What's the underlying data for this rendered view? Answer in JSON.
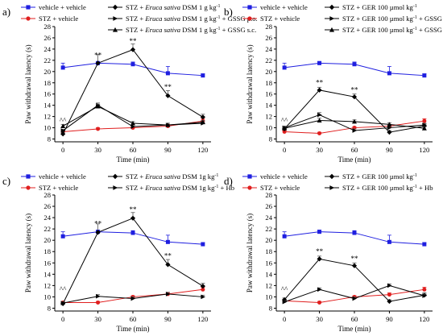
{
  "chart_data": [
    {
      "type": "line",
      "panel_label": "a)",
      "xlabel": "Time (min)",
      "ylabel": "Paw withdrawal latency (s)",
      "x": [
        0,
        30,
        60,
        90,
        120
      ],
      "xlim": [
        -7,
        127
      ],
      "ylim": [
        7.5,
        28
      ],
      "yticks": [
        8,
        10,
        12,
        14,
        16,
        18,
        20,
        22,
        24,
        26,
        28
      ],
      "legend": "top",
      "annotations": [
        {
          "text": "^^",
          "x": 0,
          "y": 10.9
        },
        {
          "text": "**",
          "x": 30,
          "y": 22.5
        },
        {
          "text": "**",
          "x": 60,
          "y": 25.0
        },
        {
          "text": "**",
          "x": 90,
          "y": 16.8
        }
      ],
      "series": [
        {
          "name": "vehicle + vehicle",
          "color": "#1f1fe0",
          "marker": "square",
          "values": [
            20.7,
            21.5,
            21.3,
            19.7,
            19.3
          ],
          "err": [
            0.8,
            0.3,
            0.4,
            1.2,
            0.3
          ]
        },
        {
          "name": "STZ + vehicle",
          "color": "#e01f1f",
          "marker": "circle",
          "values": [
            9.3,
            9.8,
            10.0,
            10.3,
            11.2
          ],
          "err": [
            0.2,
            0.2,
            0.2,
            0.3,
            0.4
          ]
        },
        {
          "name_parts": [
            "STZ + ",
            "Eruca sativa",
            " DSM 1 g kg",
            "-1"
          ],
          "color": "#000000",
          "marker": "diamond",
          "values": [
            8.9,
            21.5,
            23.9,
            15.7,
            11.9
          ],
          "err": [
            0.3,
            1.5,
            1.0,
            0.9,
            0.5
          ]
        },
        {
          "name_parts": [
            "STZ + ",
            "Eruca sativa",
            " DSM 1 g kg",
            "-1",
            " + GSSG p.o."
          ],
          "color": "#000000",
          "marker": "triangle-right",
          "values": [
            9.5,
            14.0,
            10.2,
            10.5,
            10.8
          ],
          "err": [
            0.2,
            0.4,
            0.3,
            0.3,
            0.3
          ]
        },
        {
          "name_parts": [
            "STZ + ",
            "Eruca sativa",
            " DSM 1 g kg",
            "-1",
            " + GSSG s.c."
          ],
          "color": "#000000",
          "marker": "triangle-up",
          "values": [
            10.3,
            13.8,
            10.8,
            10.5,
            11.0
          ],
          "err": [
            0.3,
            0.4,
            0.3,
            0.3,
            0.3
          ]
        }
      ]
    },
    {
      "type": "line",
      "panel_label": "b)",
      "xlabel": "Time (min)",
      "ylabel": "Paw withdrawal latency (s)",
      "x": [
        0,
        30,
        60,
        90,
        120
      ],
      "xlim": [
        -7,
        127
      ],
      "ylim": [
        7.5,
        28
      ],
      "yticks": [
        8,
        10,
        12,
        14,
        16,
        18,
        20,
        22,
        24,
        26,
        28
      ],
      "legend": "top",
      "annotations": [
        {
          "text": "^^",
          "x": 0,
          "y": 10.9
        },
        {
          "text": "**",
          "x": 30,
          "y": 17.6
        },
        {
          "text": "**",
          "x": 60,
          "y": 16.3
        }
      ],
      "series": [
        {
          "name": "vehicle + vehicle",
          "color": "#1f1fe0",
          "marker": "square",
          "values": [
            20.7,
            21.5,
            21.3,
            19.7,
            19.3
          ],
          "err": [
            0.8,
            0.3,
            0.4,
            1.2,
            0.3
          ]
        },
        {
          "name": "STZ + vehicle",
          "color": "#e01f1f",
          "marker": "circle",
          "values": [
            9.3,
            9.0,
            10.0,
            10.3,
            11.2
          ],
          "err": [
            0.2,
            0.2,
            0.2,
            0.3,
            0.4
          ]
        },
        {
          "name_parts": [
            "STZ + GER 100 µmol kg",
            "-1"
          ],
          "color": "#000000",
          "marker": "diamond",
          "values": [
            9.8,
            16.7,
            15.5,
            9.2,
            10.3
          ],
          "err": [
            0.3,
            0.5,
            0.5,
            0.3,
            0.4
          ]
        },
        {
          "name_parts": [
            "STZ + GER 100 µmol kg",
            "-1",
            " + GSSG  p.o."
          ],
          "color": "#000000",
          "marker": "triangle-right",
          "values": [
            10.0,
            12.3,
            9.5,
            10.0,
            10.5
          ],
          "err": [
            0.3,
            0.4,
            0.3,
            0.3,
            0.3
          ]
        },
        {
          "name_parts": [
            "STZ + GER 100 µmol kg",
            "-1",
            " + GSSG  s.c."
          ],
          "color": "#000000",
          "marker": "triangle-up",
          "values": [
            9.9,
            11.3,
            11.1,
            10.6,
            9.9
          ],
          "err": [
            0.3,
            0.4,
            0.3,
            0.3,
            0.3
          ]
        }
      ]
    },
    {
      "type": "line",
      "panel_label": "c)",
      "xlabel": "Time (min)",
      "ylabel": "Paw withdrawal latency (s)",
      "x": [
        0,
        30,
        60,
        90,
        120
      ],
      "xlim": [
        -7,
        127
      ],
      "ylim": [
        7.5,
        28
      ],
      "yticks": [
        8,
        10,
        12,
        14,
        16,
        18,
        20,
        22,
        24,
        26,
        28
      ],
      "legend": "top",
      "annotations": [
        {
          "text": "^^",
          "x": 0,
          "y": 10.9
        },
        {
          "text": "**",
          "x": 30,
          "y": 22.5
        },
        {
          "text": "**",
          "x": 60,
          "y": 25.0
        },
        {
          "text": "**",
          "x": 90,
          "y": 16.8
        }
      ],
      "series": [
        {
          "name": "vehicle + vehicle",
          "color": "#1f1fe0",
          "marker": "square",
          "values": [
            20.7,
            21.5,
            21.3,
            19.7,
            19.3
          ],
          "err": [
            0.8,
            0.3,
            0.4,
            1.2,
            0.3
          ]
        },
        {
          "name": "STZ + vehicle",
          "color": "#e01f1f",
          "marker": "circle",
          "values": [
            9.0,
            9.0,
            10.0,
            10.5,
            11.3
          ],
          "err": [
            0.2,
            0.2,
            0.2,
            0.3,
            0.4
          ]
        },
        {
          "name_parts": [
            "STZ + ",
            "Eruca sativa",
            " DSM 1g kg",
            "-1"
          ],
          "color": "#000000",
          "marker": "diamond",
          "values": [
            8.8,
            21.4,
            23.9,
            15.7,
            11.9
          ],
          "err": [
            0.3,
            1.5,
            1.0,
            0.9,
            0.5
          ]
        },
        {
          "name_parts": [
            "STZ + ",
            "Eruca sativa",
            " DSM 1g kg",
            "-1",
            " + Hb"
          ],
          "color": "#000000",
          "marker": "triangle-right",
          "values": [
            8.9,
            10.1,
            9.7,
            10.5,
            10.0
          ],
          "err": [
            0.2,
            0.3,
            0.3,
            0.3,
            0.3
          ]
        }
      ]
    },
    {
      "type": "line",
      "panel_label": "d)",
      "xlabel": "Time (min)",
      "ylabel": "Paw withdrawal latency (s)",
      "x": [
        0,
        30,
        60,
        90,
        120
      ],
      "xlim": [
        -7,
        127
      ],
      "ylim": [
        7.5,
        28
      ],
      "yticks": [
        8,
        10,
        12,
        14,
        16,
        18,
        20,
        22,
        24,
        26,
        28
      ],
      "legend": "top",
      "annotations": [
        {
          "text": "^^",
          "x": 0,
          "y": 10.9
        },
        {
          "text": "**",
          "x": 30,
          "y": 17.6
        },
        {
          "text": "**",
          "x": 60,
          "y": 16.3
        }
      ],
      "series": [
        {
          "name": "vehicle + vehicle",
          "color": "#1f1fe0",
          "marker": "square",
          "values": [
            20.7,
            21.5,
            21.3,
            19.7,
            19.3
          ],
          "err": [
            0.8,
            0.3,
            0.4,
            1.2,
            0.3
          ]
        },
        {
          "name": "STZ + vehicle",
          "color": "#e01f1f",
          "marker": "circle",
          "values": [
            9.3,
            9.0,
            10.0,
            10.4,
            11.3
          ],
          "err": [
            0.2,
            0.2,
            0.2,
            0.3,
            0.4
          ]
        },
        {
          "name_parts": [
            "STZ + GER 100 µmol kg",
            "-1"
          ],
          "color": "#000000",
          "marker": "diamond",
          "values": [
            9.5,
            16.7,
            15.5,
            9.2,
            10.3
          ],
          "err": [
            0.3,
            0.5,
            0.5,
            0.3,
            0.4
          ]
        },
        {
          "name_parts": [
            "STZ + GER 100 µmol kg",
            "-1",
            " + Hb"
          ],
          "color": "#000000",
          "marker": "triangle-right",
          "values": [
            9.1,
            11.3,
            9.7,
            12.0,
            10.2
          ],
          "err": [
            0.2,
            0.3,
            0.3,
            0.3,
            0.3
          ]
        }
      ]
    }
  ]
}
